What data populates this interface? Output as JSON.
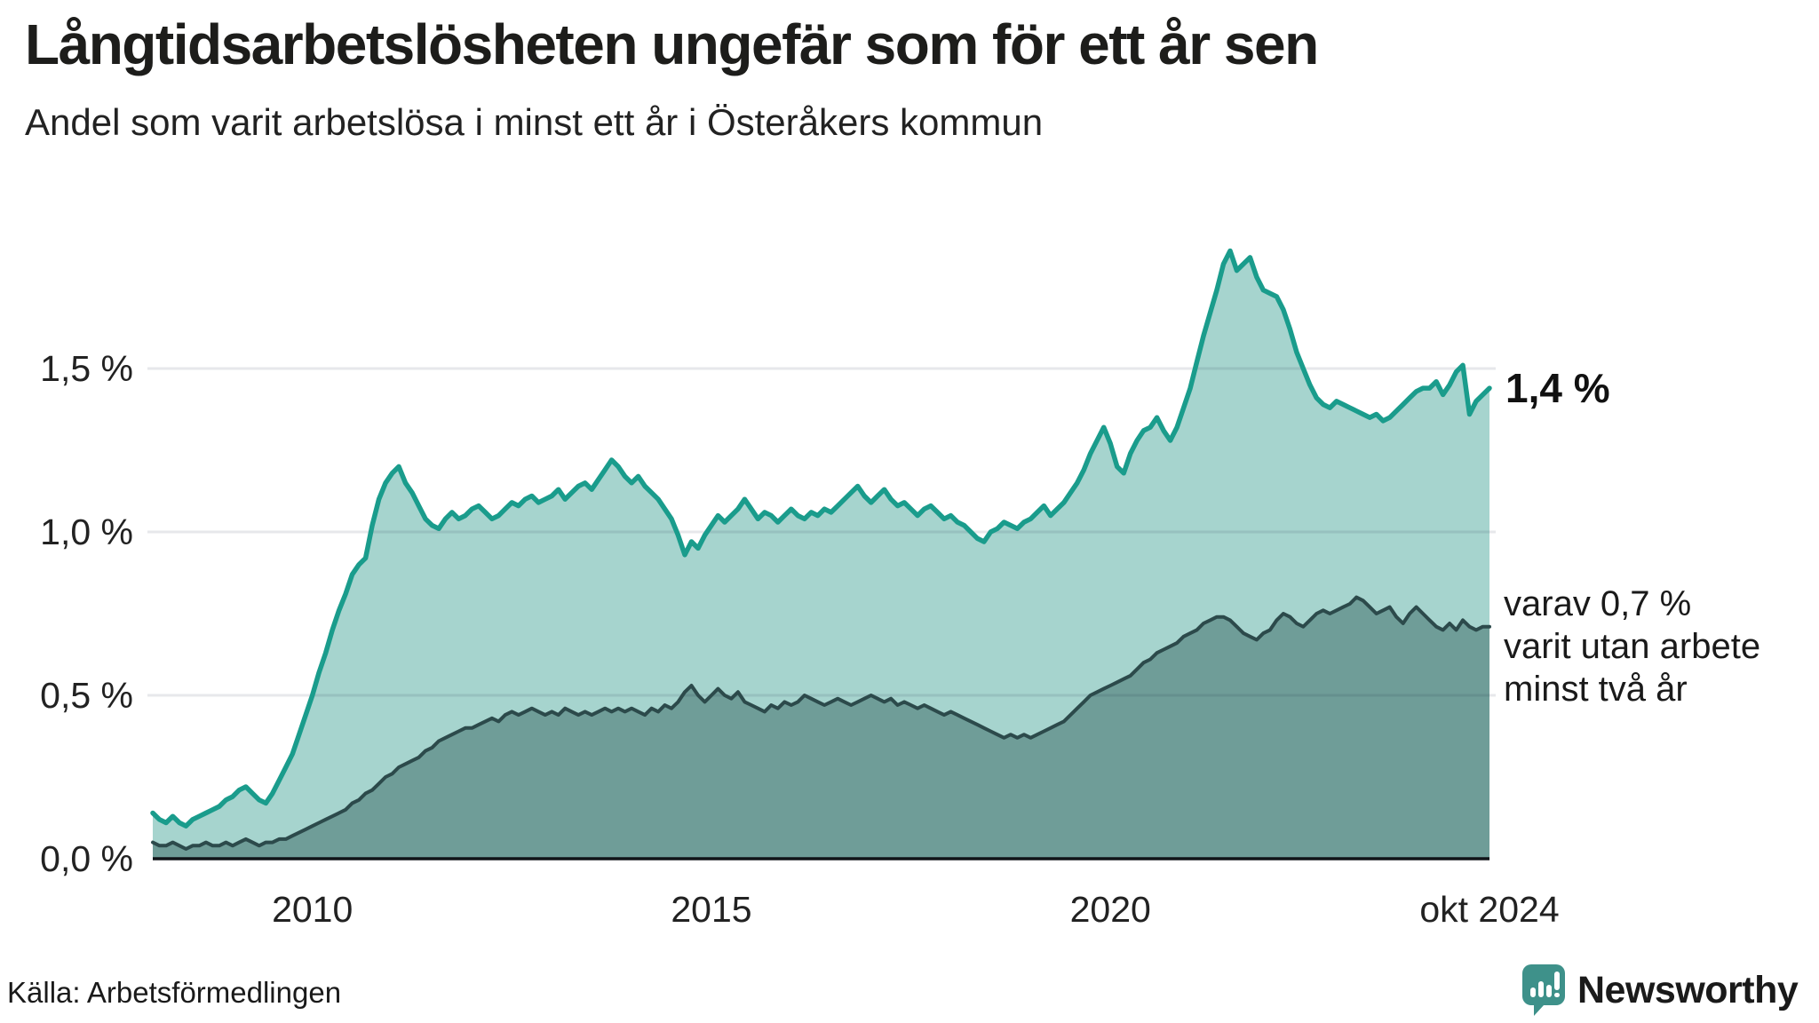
{
  "header": {
    "title": "Långtidsarbetslösheten ungefär som för ett år sen",
    "subtitle": "Andel som varit arbetslösa i minst ett år i Österåkers kommun"
  },
  "chart_data": {
    "type": "area",
    "title": "Långtidsarbetslösheten ungefär som för ett år sen",
    "subtitle": "Andel som varit arbetslösa i minst ett år i Österåkers kommun",
    "unit": "%",
    "frequency": "monthly",
    "x_start": "2008-01",
    "x_end": "2024-10",
    "ylim": [
      0,
      2.0
    ],
    "grid": "horizontal",
    "y_ticks": [
      {
        "value": 0.0,
        "label": "0,0 %"
      },
      {
        "value": 0.5,
        "label": "0,5 %"
      },
      {
        "value": 1.0,
        "label": "1,0 %"
      },
      {
        "value": 1.5,
        "label": "1,5 %"
      }
    ],
    "x_ticks": [
      {
        "month_index": 24,
        "label": "2010"
      },
      {
        "month_index": 84,
        "label": "2015"
      },
      {
        "month_index": 144,
        "label": "2020"
      },
      {
        "month_index": 201,
        "label": "okt 2024"
      }
    ],
    "series": [
      {
        "id": "unemployed_min_one_year",
        "line_color": "#1A9C8C",
        "fill_color": "#A6D4CE",
        "end_value": 1.4,
        "values": [
          0.14,
          0.12,
          0.11,
          0.13,
          0.11,
          0.1,
          0.12,
          0.13,
          0.14,
          0.15,
          0.16,
          0.18,
          0.19,
          0.21,
          0.22,
          0.2,
          0.18,
          0.17,
          0.2,
          0.24,
          0.28,
          0.32,
          0.38,
          0.44,
          0.5,
          0.57,
          0.63,
          0.7,
          0.76,
          0.81,
          0.87,
          0.9,
          0.92,
          1.02,
          1.1,
          1.15,
          1.18,
          1.2,
          1.15,
          1.12,
          1.08,
          1.04,
          1.02,
          1.01,
          1.04,
          1.06,
          1.04,
          1.05,
          1.07,
          1.08,
          1.06,
          1.04,
          1.05,
          1.07,
          1.09,
          1.08,
          1.1,
          1.11,
          1.09,
          1.1,
          1.11,
          1.13,
          1.1,
          1.12,
          1.14,
          1.15,
          1.13,
          1.16,
          1.19,
          1.22,
          1.2,
          1.17,
          1.15,
          1.17,
          1.14,
          1.12,
          1.1,
          1.07,
          1.04,
          0.99,
          0.93,
          0.97,
          0.95,
          0.99,
          1.02,
          1.05,
          1.03,
          1.05,
          1.07,
          1.1,
          1.07,
          1.04,
          1.06,
          1.05,
          1.03,
          1.05,
          1.07,
          1.05,
          1.04,
          1.06,
          1.05,
          1.07,
          1.06,
          1.08,
          1.1,
          1.12,
          1.14,
          1.11,
          1.09,
          1.11,
          1.13,
          1.1,
          1.08,
          1.09,
          1.07,
          1.05,
          1.07,
          1.08,
          1.06,
          1.04,
          1.05,
          1.03,
          1.02,
          1.0,
          0.98,
          0.97,
          1.0,
          1.01,
          1.03,
          1.02,
          1.01,
          1.03,
          1.04,
          1.06,
          1.08,
          1.05,
          1.07,
          1.09,
          1.12,
          1.15,
          1.19,
          1.24,
          1.28,
          1.32,
          1.27,
          1.2,
          1.18,
          1.24,
          1.28,
          1.31,
          1.32,
          1.35,
          1.31,
          1.28,
          1.32,
          1.38,
          1.44,
          1.52,
          1.6,
          1.67,
          1.74,
          1.82,
          1.86,
          1.8,
          1.82,
          1.84,
          1.78,
          1.74,
          1.73,
          1.72,
          1.68,
          1.62,
          1.55,
          1.5,
          1.45,
          1.41,
          1.39,
          1.38,
          1.4,
          1.39,
          1.38,
          1.37,
          1.36,
          1.35,
          1.36,
          1.34,
          1.35,
          1.37,
          1.39,
          1.41,
          1.43,
          1.44,
          1.44,
          1.46,
          1.42,
          1.45,
          1.49,
          1.51,
          1.36,
          1.4,
          1.42,
          1.44
        ]
      },
      {
        "id": "unemployed_min_two_years",
        "line_color": "#2C4A4B",
        "fill_color": "#6F9D98",
        "end_value": 0.7,
        "values": [
          0.05,
          0.04,
          0.04,
          0.05,
          0.04,
          0.03,
          0.04,
          0.04,
          0.05,
          0.04,
          0.04,
          0.05,
          0.04,
          0.05,
          0.06,
          0.05,
          0.04,
          0.05,
          0.05,
          0.06,
          0.06,
          0.07,
          0.08,
          0.09,
          0.1,
          0.11,
          0.12,
          0.13,
          0.14,
          0.15,
          0.17,
          0.18,
          0.2,
          0.21,
          0.23,
          0.25,
          0.26,
          0.28,
          0.29,
          0.3,
          0.31,
          0.33,
          0.34,
          0.36,
          0.37,
          0.38,
          0.39,
          0.4,
          0.4,
          0.41,
          0.42,
          0.43,
          0.42,
          0.44,
          0.45,
          0.44,
          0.45,
          0.46,
          0.45,
          0.44,
          0.45,
          0.44,
          0.46,
          0.45,
          0.44,
          0.45,
          0.44,
          0.45,
          0.46,
          0.45,
          0.46,
          0.45,
          0.46,
          0.45,
          0.44,
          0.46,
          0.45,
          0.47,
          0.46,
          0.48,
          0.51,
          0.53,
          0.5,
          0.48,
          0.5,
          0.52,
          0.5,
          0.49,
          0.51,
          0.48,
          0.47,
          0.46,
          0.45,
          0.47,
          0.46,
          0.48,
          0.47,
          0.48,
          0.5,
          0.49,
          0.48,
          0.47,
          0.48,
          0.49,
          0.48,
          0.47,
          0.48,
          0.49,
          0.5,
          0.49,
          0.48,
          0.49,
          0.47,
          0.48,
          0.47,
          0.46,
          0.47,
          0.46,
          0.45,
          0.44,
          0.45,
          0.44,
          0.43,
          0.42,
          0.41,
          0.4,
          0.39,
          0.38,
          0.37,
          0.38,
          0.37,
          0.38,
          0.37,
          0.38,
          0.39,
          0.4,
          0.41,
          0.42,
          0.44,
          0.46,
          0.48,
          0.5,
          0.51,
          0.52,
          0.53,
          0.54,
          0.55,
          0.56,
          0.58,
          0.6,
          0.61,
          0.63,
          0.64,
          0.65,
          0.66,
          0.68,
          0.69,
          0.7,
          0.72,
          0.73,
          0.74,
          0.74,
          0.73,
          0.71,
          0.69,
          0.68,
          0.67,
          0.69,
          0.7,
          0.73,
          0.75,
          0.74,
          0.72,
          0.71,
          0.73,
          0.75,
          0.76,
          0.75,
          0.76,
          0.77,
          0.78,
          0.8,
          0.79,
          0.77,
          0.75,
          0.76,
          0.77,
          0.74,
          0.72,
          0.75,
          0.77,
          0.75,
          0.73,
          0.71,
          0.7,
          0.72,
          0.7,
          0.73,
          0.71,
          0.7,
          0.71,
          0.71
        ]
      }
    ],
    "annotations": {
      "total_end": "1,4 %",
      "two_year_lines": [
        "varav 0,7 %",
        "varit utan arbete",
        "minst två år"
      ]
    }
  },
  "footer": {
    "source": "Källa: Arbetsförmedlingen",
    "brand": "Newsworthy"
  },
  "colors": {
    "accent": "#3E918A",
    "grid": "rgba(20,30,60,0.10)",
    "axis": "#101418"
  }
}
